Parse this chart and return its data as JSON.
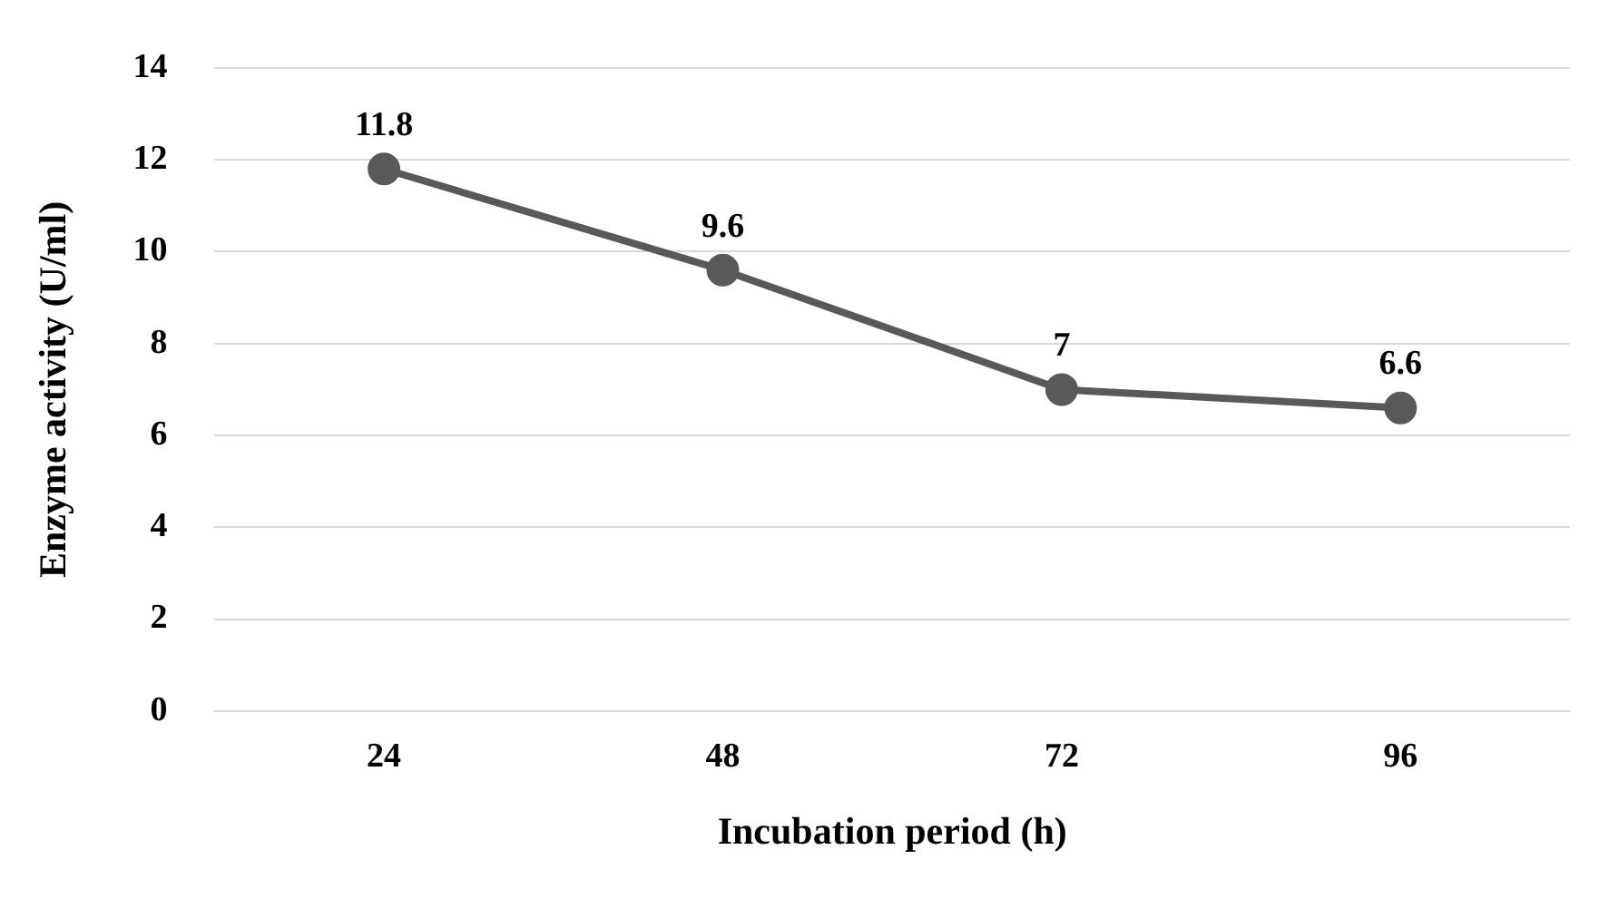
{
  "chart_data": {
    "type": "line",
    "xlabel": "Incubation period (h)",
    "ylabel": "Enzyme activity (U/ml)",
    "categories": [
      "24",
      "48",
      "72",
      "96"
    ],
    "series": [
      {
        "color": "#595959",
        "values": [
          11.8,
          9.6,
          7,
          6.6
        ]
      }
    ],
    "ylim": [
      0,
      14
    ],
    "yticks": [
      0,
      2,
      4,
      6,
      8,
      10,
      12,
      14
    ],
    "grid": "y",
    "legend": false,
    "marker": "circle",
    "line_style": "solid",
    "data_labels": true
  }
}
